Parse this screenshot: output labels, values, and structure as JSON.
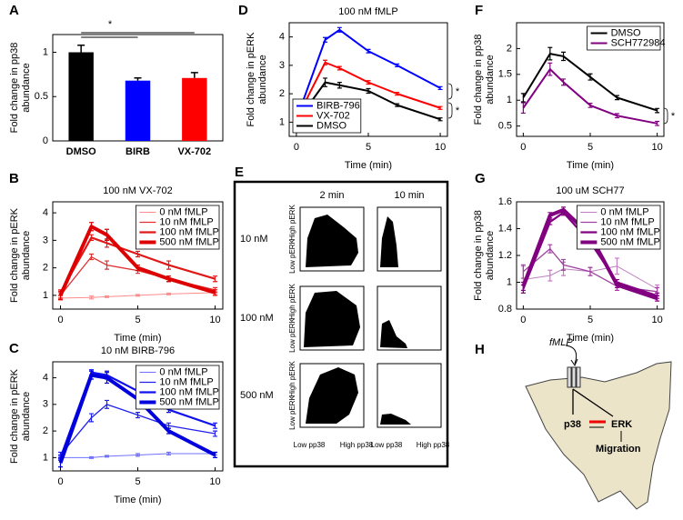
{
  "chart_data": [
    {
      "panel": "A",
      "type": "bar",
      "categories": [
        "DMSO",
        "BIRB",
        "VX-702"
      ],
      "values": [
        1.0,
        0.68,
        0.71
      ],
      "errors": [
        0.08,
        0.03,
        0.06
      ],
      "colors": [
        "#000000",
        "#0000ff",
        "#ff0000"
      ],
      "ylim": [
        0,
        1.2
      ],
      "yticks": [
        0,
        0.5,
        1
      ],
      "ylabel": [
        "Fold change in pp38",
        "abundance"
      ],
      "annotations": [
        "*"
      ]
    },
    {
      "panel": "B",
      "type": "line",
      "title": "100 nM VX-702",
      "x": [
        0,
        2,
        3,
        5,
        7,
        10
      ],
      "xlim": [
        -0.5,
        10.5
      ],
      "xticks": [
        0,
        5,
        10
      ],
      "ylim": [
        0.5,
        4.4
      ],
      "yticks": [
        1,
        2,
        3,
        4
      ],
      "xlabel": "Time (min)",
      "ylabel": [
        "Fold change in pERK",
        "abundance"
      ],
      "legend": "upper right",
      "series": [
        {
          "name": "0 nM fMLP",
          "color": "#ff8c8c",
          "line_width": 1,
          "values": [
            0.9,
            0.92,
            0.95,
            1.0,
            1.05,
            1.1
          ],
          "errors": [
            0.08,
            0.05,
            0.03,
            0.03,
            0.03,
            0.03
          ]
        },
        {
          "name": "10 nM fMLP",
          "color": "#e03030",
          "line_width": 1.3,
          "values": [
            1.0,
            2.4,
            2.1,
            1.9,
            1.6,
            1.2
          ],
          "errors": [
            0.1,
            0.1,
            0.15,
            0.1,
            0.1,
            0.08
          ]
        },
        {
          "name": "100 nM fMLP",
          "color": "#e01818",
          "line_width": 2.2,
          "values": [
            1.1,
            3.1,
            2.9,
            2.5,
            2.1,
            1.6
          ],
          "errors": [
            0.1,
            0.1,
            0.15,
            0.1,
            0.15,
            0.1
          ]
        },
        {
          "name": "500 nM fMLP",
          "color": "#dd0000",
          "line_width": 4,
          "values": [
            1.0,
            3.5,
            3.2,
            2.0,
            1.6,
            1.1
          ],
          "errors": [
            0.15,
            0.15,
            0.2,
            0.1,
            0.1,
            0.1
          ]
        }
      ]
    },
    {
      "panel": "C",
      "type": "line",
      "title": "10 nM BIRB-796",
      "x": [
        0,
        2,
        3,
        5,
        7,
        10
      ],
      "xlim": [
        -0.5,
        10.5
      ],
      "xticks": [
        0,
        5,
        10
      ],
      "ylim": [
        0.5,
        4.6
      ],
      "yticks": [
        1,
        2,
        3,
        4
      ],
      "xlabel": "Time (min)",
      "ylabel": [
        "Fold change in pERK",
        "abundance"
      ],
      "legend": "upper right",
      "series": [
        {
          "name": "0 nM fMLP",
          "color": "#7070ff",
          "line_width": 1,
          "values": [
            1.0,
            1.0,
            1.05,
            1.1,
            1.15,
            1.15
          ],
          "errors": [
            0.05,
            0.03,
            0.03,
            0.05,
            0.05,
            0.05
          ]
        },
        {
          "name": "10 nM fMLP",
          "color": "#2020ee",
          "line_width": 1.3,
          "values": [
            1.1,
            2.5,
            3.0,
            2.6,
            2.2,
            1.9
          ],
          "errors": [
            0.1,
            0.15,
            0.15,
            0.1,
            0.1,
            0.1
          ]
        },
        {
          "name": "100 nM fMLP",
          "color": "#1010ee",
          "line_width": 2.2,
          "values": [
            1.0,
            4.2,
            4.1,
            3.5,
            2.8,
            2.2
          ],
          "errors": [
            0.1,
            0.1,
            0.15,
            0.1,
            0.1,
            0.1
          ]
        },
        {
          "name": "500 nM fMLP",
          "color": "#0000dd",
          "line_width": 4,
          "values": [
            0.8,
            4.1,
            4.0,
            3.2,
            2.0,
            1.1
          ],
          "errors": [
            0.15,
            0.15,
            0.2,
            0.1,
            0.1,
            0.1
          ]
        }
      ]
    },
    {
      "panel": "D",
      "type": "line",
      "title": "100 nM fMLP",
      "x": [
        0,
        2,
        3,
        5,
        7,
        10
      ],
      "xlim": [
        -0.5,
        10.5
      ],
      "xticks": [
        0,
        5,
        10
      ],
      "ylim": [
        0.5,
        4.5
      ],
      "yticks": [
        1,
        2,
        3,
        4
      ],
      "xlabel": "Time (min)",
      "ylabel": [
        "Fold change in pERK",
        "abundance"
      ],
      "legend": "lower left",
      "annotations": [
        "*",
        "*"
      ],
      "series": [
        {
          "name": "BIRB-796",
          "color": "#0000ff",
          "line_width": 2,
          "values": [
            1.1,
            3.9,
            4.25,
            3.5,
            3.0,
            2.2
          ],
          "errors": [
            0.05,
            0.08,
            0.08,
            0.06,
            0.05,
            0.05
          ]
        },
        {
          "name": "VX-702",
          "color": "#ff0000",
          "line_width": 2,
          "values": [
            1.1,
            3.1,
            2.9,
            2.4,
            2.0,
            1.5
          ],
          "errors": [
            0.05,
            0.08,
            0.06,
            0.06,
            0.05,
            0.05
          ]
        },
        {
          "name": "DMSO",
          "color": "#000000",
          "line_width": 2,
          "values": [
            1.0,
            2.4,
            2.3,
            2.1,
            1.6,
            1.1
          ],
          "errors": [
            0.05,
            0.15,
            0.1,
            0.08,
            0.05,
            0.05
          ]
        }
      ]
    },
    {
      "panel": "F",
      "type": "line",
      "x": [
        0,
        2,
        3,
        5,
        7,
        10
      ],
      "xlim": [
        -0.5,
        10.5
      ],
      "xticks": [
        0,
        5,
        10
      ],
      "ylim": [
        0.3,
        2.5
      ],
      "yticks": [
        0.5,
        1,
        1.5,
        2
      ],
      "xlabel": "Time (min)",
      "ylabel": [
        "Fold change in pp38",
        "abundance"
      ],
      "legend": "upper right",
      "annotations": [
        "*"
      ],
      "series": [
        {
          "name": "DMSO",
          "color": "#000000",
          "line_width": 2,
          "values": [
            1.05,
            1.9,
            1.85,
            1.45,
            1.05,
            0.8
          ],
          "errors": [
            0.08,
            0.12,
            0.08,
            0.06,
            0.04,
            0.04
          ]
        },
        {
          "name": "SCH772984",
          "color": "#800080",
          "line_width": 2,
          "values": [
            0.85,
            1.6,
            1.35,
            0.9,
            0.7,
            0.55
          ],
          "errors": [
            0.1,
            0.12,
            0.06,
            0.04,
            0.04,
            0.04
          ]
        }
      ]
    },
    {
      "panel": "G",
      "type": "line",
      "title": "100 uM SCH77",
      "x": [
        0,
        2,
        3,
        5,
        7,
        10
      ],
      "xlim": [
        -0.5,
        10.5
      ],
      "xticks": [
        0,
        5,
        10
      ],
      "ylim": [
        0.8,
        1.6
      ],
      "yticks": [
        0.8,
        1,
        1.2,
        1.4,
        1.6
      ],
      "xlabel": "Time (min)",
      "ylabel": [
        "Fold change in pp38",
        "abundance"
      ],
      "legend": "upper right",
      "series": [
        {
          "name": "0 nM fMLP",
          "color": "#c080c0",
          "line_width": 1,
          "values": [
            1.02,
            1.05,
            1.1,
            1.08,
            1.12,
            0.95
          ],
          "errors": [
            0.1,
            0.04,
            0.05,
            0.03,
            0.06,
            0.03
          ]
        },
        {
          "name": "10 nM fMLP",
          "color": "#a040a0",
          "line_width": 1.3,
          "values": [
            1.08,
            1.25,
            1.13,
            1.08,
            0.97,
            0.93
          ],
          "errors": [
            0.05,
            0.03,
            0.04,
            0.03,
            0.03,
            0.03
          ]
        },
        {
          "name": "100 nM fMLP",
          "color": "#800080",
          "line_width": 2.2,
          "values": [
            0.95,
            1.45,
            1.52,
            1.3,
            1.0,
            0.9
          ],
          "errors": [
            0.03,
            0.02,
            0.02,
            0.02,
            0.02,
            0.02
          ]
        },
        {
          "name": "500 nM fMLP",
          "color": "#800080",
          "line_width": 4,
          "values": [
            0.97,
            1.5,
            1.54,
            1.35,
            0.98,
            0.88
          ],
          "errors": [
            0.03,
            0.02,
            0.02,
            0.02,
            0.02,
            0.02
          ]
        }
      ]
    }
  ],
  "flow_panel": {
    "panel": "E",
    "columns": [
      "2 min",
      "10 min"
    ],
    "rows": [
      "10 nM",
      "100 nM",
      "500 nM"
    ],
    "y_high": "High pERK",
    "y_low": "Low pERK",
    "x_low": "Low pp38",
    "x_high": "High pp38"
  },
  "diagram": {
    "panel": "H",
    "ligand": "fMLP",
    "nodes": [
      "p38",
      "ERK"
    ],
    "outcome": "Migration"
  }
}
